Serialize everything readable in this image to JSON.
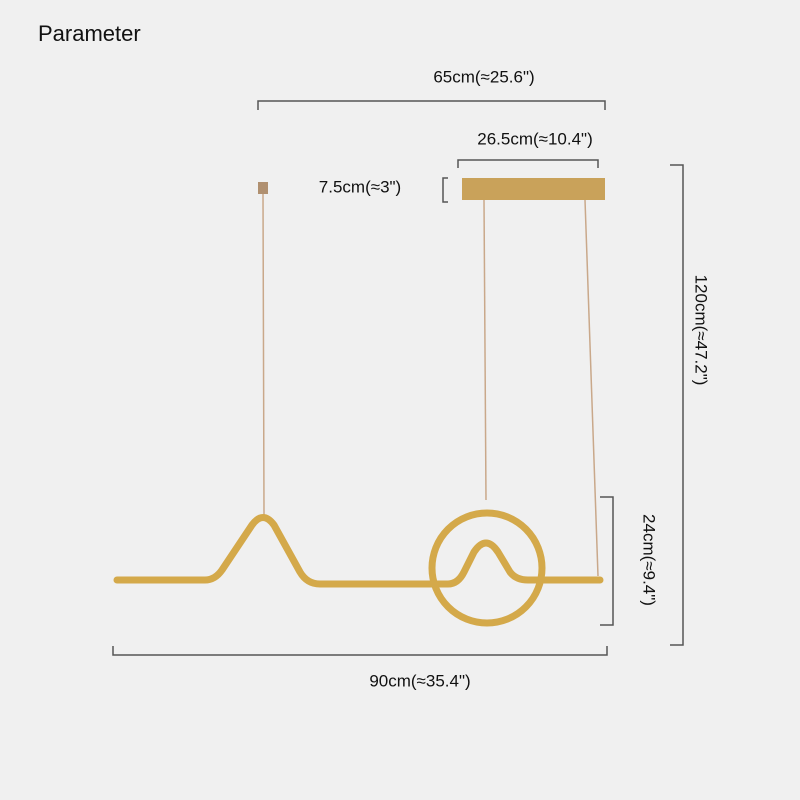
{
  "header": {
    "title": "Parameter"
  },
  "dimensions": {
    "overall_width": "65cm(≈25.6\")",
    "canopy_width": "26.5cm(≈10.4\")",
    "canopy_height": "7.5cm(≈3\")",
    "max_height": "120cm(≈47.2\")",
    "fixture_height": "24cm(≈9.4\")",
    "fixture_length": "90cm(≈35.4\")"
  }
}
